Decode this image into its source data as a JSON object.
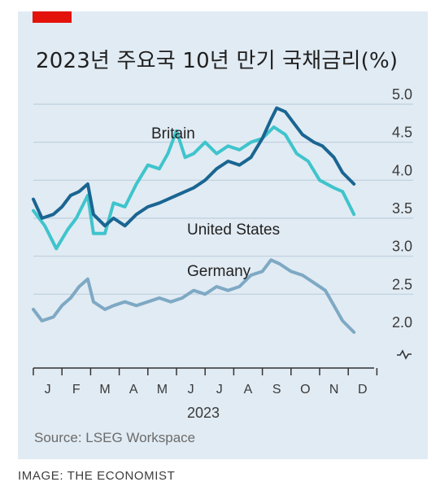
{
  "title": "2023년 주요국 10년 만기 국채금리(%)",
  "source": "Source: LSEG Workspace",
  "credit": "IMAGE: THE ECONOMIST",
  "colors": {
    "britain": "#3fc4cc",
    "united_states": "#1a6592",
    "germany": "#7ea9c4",
    "grid": "#bccfdd",
    "axis": "#333333",
    "accent": "#e3120b"
  },
  "chart_data": {
    "type": "line",
    "title": "2023년 주요국 10년 만기 국채금리(%)",
    "xlabel": "2023",
    "ylabel": "",
    "ylim": [
      2.0,
      5.0
    ],
    "yticks": [
      "5.0",
      "4.5",
      "4.0",
      "3.5",
      "3.0",
      "2.5",
      "2.0"
    ],
    "months": [
      "J",
      "F",
      "M",
      "A",
      "M",
      "J",
      "J",
      "A",
      "S",
      "O",
      "N",
      "D"
    ],
    "x_unit": "month (1 = January)",
    "y_axis_break": true,
    "grid": true,
    "series": [
      {
        "name": "Britain",
        "x": [
          1.0,
          1.4,
          1.8,
          2.2,
          2.5,
          2.9,
          3.1,
          3.5,
          3.8,
          4.2,
          4.6,
          5.0,
          5.4,
          5.7,
          6.0,
          6.3,
          6.6,
          7.0,
          7.4,
          7.8,
          8.2,
          8.6,
          9.0,
          9.4,
          9.8,
          10.2,
          10.6,
          11.0,
          11.5,
          11.8,
          12.2
        ],
        "values": [
          3.6,
          3.4,
          3.1,
          3.35,
          3.5,
          3.8,
          3.3,
          3.3,
          3.7,
          3.65,
          3.95,
          4.2,
          4.15,
          4.35,
          4.65,
          4.3,
          4.35,
          4.5,
          4.35,
          4.45,
          4.4,
          4.5,
          4.55,
          4.7,
          4.6,
          4.35,
          4.25,
          4.0,
          3.9,
          3.85,
          3.55
        ]
      },
      {
        "name": "United States",
        "x": [
          1.0,
          1.3,
          1.7,
          2.0,
          2.3,
          2.6,
          2.9,
          3.1,
          3.5,
          3.8,
          4.2,
          4.6,
          5.0,
          5.4,
          5.7,
          6.0,
          6.3,
          6.6,
          7.0,
          7.4,
          7.8,
          8.2,
          8.6,
          9.0,
          9.3,
          9.5,
          9.8,
          10.1,
          10.4,
          10.8,
          11.1,
          11.5,
          11.8,
          12.2
        ],
        "values": [
          3.75,
          3.5,
          3.55,
          3.65,
          3.8,
          3.85,
          3.95,
          3.55,
          3.4,
          3.5,
          3.4,
          3.55,
          3.65,
          3.7,
          3.75,
          3.8,
          3.85,
          3.9,
          4.0,
          4.15,
          4.25,
          4.2,
          4.3,
          4.55,
          4.8,
          4.95,
          4.9,
          4.75,
          4.6,
          4.5,
          4.45,
          4.3,
          4.1,
          3.95
        ]
      },
      {
        "name": "Germany",
        "x": [
          1.0,
          1.3,
          1.7,
          2.0,
          2.3,
          2.6,
          2.9,
          3.1,
          3.5,
          3.8,
          4.2,
          4.6,
          5.0,
          5.4,
          5.8,
          6.2,
          6.6,
          7.0,
          7.4,
          7.8,
          8.2,
          8.6,
          9.0,
          9.3,
          9.6,
          10.0,
          10.4,
          10.8,
          11.2,
          11.5,
          11.8,
          12.2
        ],
        "values": [
          2.3,
          2.15,
          2.2,
          2.35,
          2.45,
          2.6,
          2.7,
          2.4,
          2.3,
          2.35,
          2.4,
          2.35,
          2.4,
          2.45,
          2.4,
          2.45,
          2.55,
          2.5,
          2.6,
          2.55,
          2.6,
          2.75,
          2.8,
          2.95,
          2.9,
          2.8,
          2.75,
          2.65,
          2.55,
          2.35,
          2.15,
          2.0
        ]
      }
    ],
    "series_labels": [
      "Britain",
      "United States",
      "Germany"
    ]
  }
}
